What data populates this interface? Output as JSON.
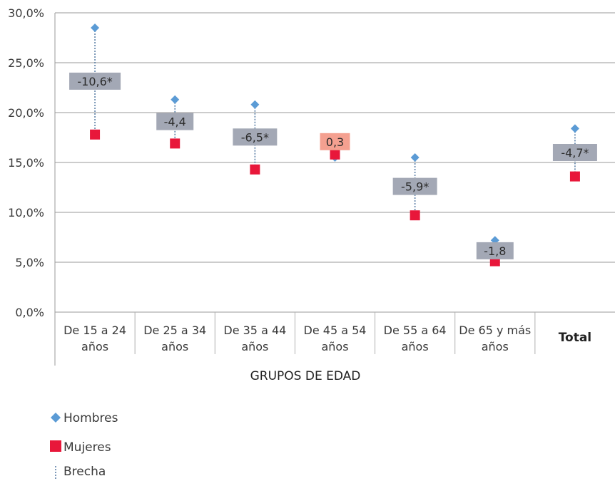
{
  "chart_data": {
    "type": "scatter",
    "title": "",
    "xlabel": "GRUPOS DE EDAD",
    "ylabel": "",
    "ylim": [
      0,
      30
    ],
    "y_ticks": [
      "0,0%",
      "5,0%",
      "10,0%",
      "15,0%",
      "20,0%",
      "25,0%",
      "30,0%"
    ],
    "grid": true,
    "legend_position": "bottom-left",
    "categories": [
      [
        "De 15 a 24",
        "años"
      ],
      [
        "De 25 a 34",
        "años"
      ],
      [
        "De 35 a 44",
        "años"
      ],
      [
        "De 45 a 54",
        "años"
      ],
      [
        "De 55 a 64",
        "años"
      ],
      [
        "De 65 y más",
        "años"
      ],
      [
        "Total"
      ]
    ],
    "series": [
      {
        "name": "Hombres",
        "marker": "diamond",
        "color": "#5b9bd5",
        "values": [
          28.5,
          21.3,
          20.8,
          15.5,
          15.5,
          7.2,
          18.4
        ]
      },
      {
        "name": "Mujeres",
        "marker": "square",
        "color": "#e8173a",
        "values": [
          17.8,
          16.9,
          14.3,
          15.8,
          9.7,
          5.1,
          13.6
        ]
      }
    ],
    "gap": {
      "name": "Brecha",
      "labels": [
        "-10,6*",
        "-4,4",
        "-6,5*",
        "0,3",
        "-5,9*",
        "-1,8",
        "-4,7*"
      ],
      "highlight": [
        false,
        false,
        false,
        true,
        false,
        false,
        false
      ],
      "label_color": "#a3a8b5",
      "highlight_color": "#f4a090",
      "line_color": "#5b7fa6"
    }
  }
}
